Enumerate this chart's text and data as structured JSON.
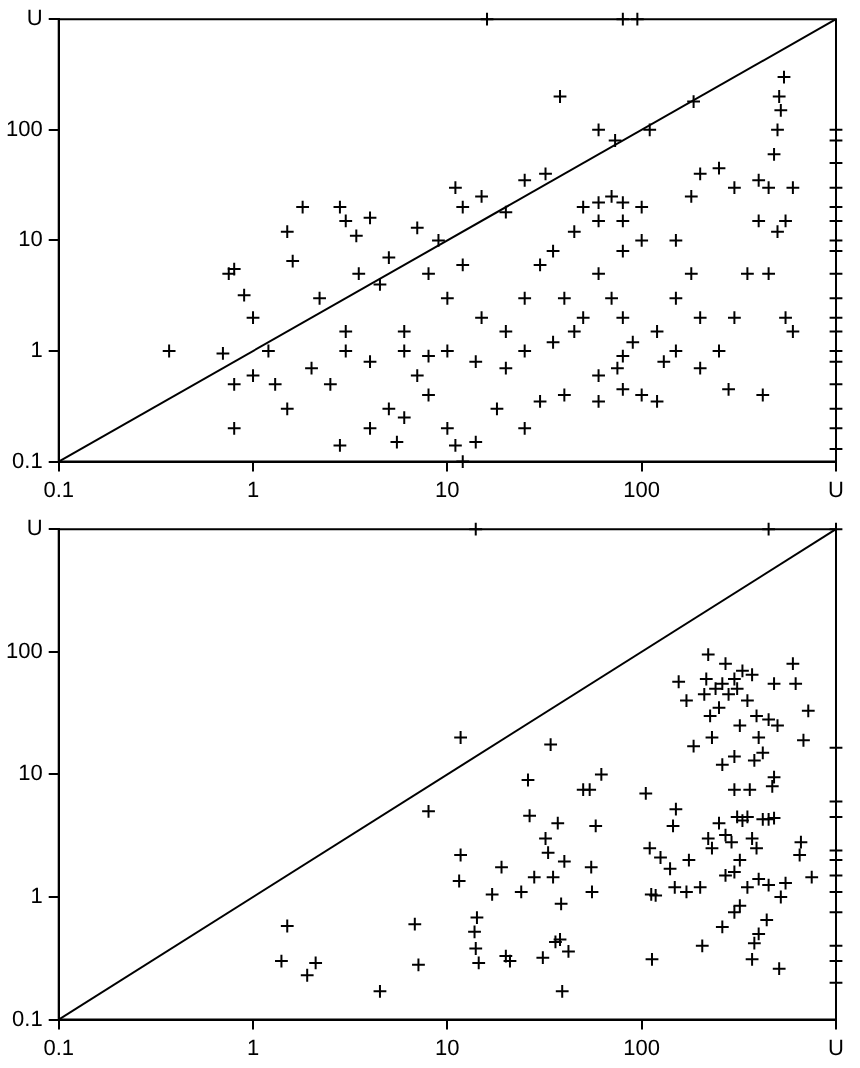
{
  "chart_data": [
    {
      "type": "scatter",
      "log": "xy",
      "grid": false,
      "legend": false,
      "xlim": [
        0.1,
        1000
      ],
      "ylim": [
        0.1,
        1000
      ],
      "xticks": [
        0.1,
        1,
        10,
        100,
        {
          "value": 1000,
          "label": "U"
        }
      ],
      "yticks": [
        0.1,
        1,
        10,
        100,
        {
          "value": 1000,
          "label": "U"
        }
      ],
      "series": [
        {
          "type": "scatter",
          "color": "#000000",
          "marker": "cross",
          "x": [
            0.37,
            0.7,
            0.75,
            0.8,
            0.8,
            0.9,
            1,
            1.2,
            1.5,
            1.6,
            1.8,
            2.8,
            3,
            3.4,
            4,
            0.8,
            1,
            1.3,
            1.5,
            2,
            2.5,
            3,
            2.2,
            3.5,
            4.5,
            5,
            6,
            7,
            7,
            9,
            11,
            12,
            15,
            20,
            25,
            32,
            38,
            60,
            73,
            110,
            185,
            8,
            10,
            12,
            15,
            20,
            25,
            30,
            5,
            6,
            4,
            5.5,
            2.8,
            10,
            11,
            12,
            14,
            8,
            18,
            25,
            30,
            40,
            60,
            80,
            120,
            200,
            280,
            420,
            3,
            4,
            6,
            8,
            10,
            14,
            20,
            25,
            35,
            45,
            50,
            40,
            35,
            45,
            50,
            60,
            70,
            80,
            100,
            60,
            80,
            100,
            60,
            80,
            70,
            80,
            75,
            80,
            90,
            120,
            150,
            150,
            180,
            200,
            250,
            300,
            400,
            400,
            450,
            480,
            500,
            520,
            540,
            510,
            500,
            550,
            600,
            550,
            600,
            450,
            350,
            300,
            250,
            200,
            180,
            150,
            130,
            100,
            60,
            1000,
            1000,
            1000,
            1000,
            1000,
            1000,
            1000,
            1000,
            1000,
            1000,
            1000,
            1000,
            1000,
            1000,
            1000,
            1000,
            1000,
            1000,
            16,
            80,
            95
          ],
          "values": [
            1,
            0.95,
            5,
            5.5,
            0.2,
            3.2,
            2,
            1,
            12,
            6.5,
            20,
            20,
            15,
            11,
            16,
            0.5,
            0.6,
            0.5,
            0.3,
            0.7,
            0.5,
            1.5,
            3,
            5,
            4,
            7,
            1,
            0.6,
            13,
            10,
            30,
            20,
            25,
            18,
            35,
            40,
            200,
            100,
            80,
            100,
            180,
            5,
            3,
            6,
            2,
            1.5,
            3,
            6,
            0.3,
            0.25,
            0.2,
            0.15,
            0.14,
            0.2,
            0.14,
            0.1,
            0.15,
            0.4,
            0.3,
            0.2,
            0.35,
            0.4,
            0.35,
            0.45,
            0.35,
            0.7,
            0.45,
            0.4,
            1,
            0.8,
            1.5,
            0.9,
            1,
            0.8,
            0.7,
            1,
            1.2,
            1.5,
            2,
            3,
            8,
            12,
            20,
            22,
            25,
            22,
            20,
            15,
            15,
            10,
            5,
            8,
            3,
            2,
            0.7,
            0.9,
            1.2,
            1.5,
            3,
            10,
            25,
            40,
            45,
            30,
            35,
            15,
            30,
            60,
            100,
            150,
            300,
            200,
            12,
            15,
            30,
            2,
            1.5,
            5,
            5,
            2,
            1,
            2,
            5,
            1,
            0.8,
            0.4,
            0.6,
            0.13,
            0.2,
            0.3,
            0.5,
            0.8,
            1,
            1.5,
            2,
            3,
            5,
            8,
            10,
            15,
            20,
            30,
            50,
            80,
            100,
            1000,
            1000,
            1000
          ]
        },
        {
          "type": "line",
          "color": "#000000",
          "marker": "none",
          "x": [
            0.1,
            1000
          ],
          "values": [
            0.1,
            1000
          ]
        }
      ]
    },
    {
      "type": "scatter",
      "log": "xy",
      "grid": false,
      "legend": false,
      "xlim": [
        0.1,
        1000
      ],
      "ylim": [
        0.1,
        1000
      ],
      "xticks": [
        0.1,
        1,
        10,
        100,
        {
          "value": 1000,
          "label": "U"
        }
      ],
      "yticks": [
        0.1,
        1,
        10,
        100,
        {
          "value": 1000,
          "label": "U"
        }
      ],
      "series": [
        {
          "type": "scatter",
          "color": "#000000",
          "marker": "cross",
          "x": [
            1.4,
            1.5,
            1.9,
            2.1,
            4.5,
            6.8,
            7.1,
            8,
            11.7,
            11.7,
            11.5,
            13.8,
            14,
            14.2,
            14.5,
            17,
            19,
            20,
            21,
            24,
            26,
            26.5,
            28,
            31,
            32,
            33,
            34,
            35,
            36,
            37,
            38,
            38.5,
            39,
            40,
            42,
            50,
            54,
            55,
            55.5,
            58,
            62,
            105,
            110,
            112,
            113,
            118,
            125,
            140,
            145,
            150,
            148,
            155,
            170,
            170,
            175,
            185,
            200,
            205,
            210,
            215,
            220,
            225,
            230,
            240,
            250,
            260,
            270,
            280,
            300,
            310,
            320,
            330,
            350,
            370,
            390,
            400,
            420,
            450,
            480,
            500,
            260,
            300,
            380,
            220,
            230,
            250,
            270,
            290,
            310,
            330,
            350,
            370,
            390,
            420,
            450,
            470,
            480,
            360,
            300,
            320,
            300,
            270,
            350,
            400,
            450,
            440,
            400,
            380,
            370,
            320,
            300,
            260,
            520,
            550,
            600,
            620,
            650,
            660,
            680,
            720,
            750,
            510,
            480,
            1000,
            1000,
            1000,
            1000,
            1000,
            1000,
            1000,
            1000,
            1000,
            1000,
            1000,
            1000,
            14,
            450
          ],
          "values": [
            0.3,
            0.58,
            0.23,
            0.29,
            0.17,
            0.6,
            0.28,
            5,
            20,
            2.2,
            1.35,
            0.52,
            0.38,
            0.68,
            0.29,
            1.05,
            1.75,
            0.33,
            0.3,
            1.1,
            9,
            4.6,
            1.45,
            0.32,
            3,
            2.3,
            17.5,
            1.45,
            0.43,
            4,
            0.45,
            0.88,
            0.17,
            1.95,
            0.36,
            7.5,
            7.5,
            1.75,
            1.1,
            3.8,
            10,
            7,
            2.5,
            1.05,
            0.31,
            1.03,
            2.1,
            1.7,
            3.8,
            5.2,
            1.2,
            57,
            40,
            1.1,
            2,
            17,
            1.2,
            0.4,
            45,
            60,
            95,
            30,
            20,
            50,
            35,
            55,
            80,
            45,
            60,
            50,
            25,
            70,
            40,
            65,
            30,
            20,
            15,
            28,
            55,
            25,
            12,
            14,
            13,
            3,
            2.5,
            4,
            3.2,
            2.8,
            4.5,
            4.2,
            4.5,
            3,
            2.5,
            4.3,
            4.3,
            8,
            9.5,
            7.5,
            7.5,
            2,
            1.6,
            1.5,
            1.2,
            1.4,
            1.25,
            0.65,
            0.5,
            0.42,
            0.31,
            0.85,
            0.75,
            0.57,
            1,
            1.3,
            80,
            55,
            2.2,
            2.8,
            19,
            33,
            1.45,
            0.26,
            4.4,
            0.2,
            0.3,
            0.4,
            0.75,
            1.1,
            1.5,
            2,
            2.4,
            4.5,
            6,
            16.5,
            1000,
            1000,
            1000
          ]
        },
        {
          "type": "line",
          "color": "#000000",
          "marker": "none",
          "x": [
            0.1,
            1000
          ],
          "values": [
            0.1,
            1000
          ]
        }
      ]
    }
  ]
}
